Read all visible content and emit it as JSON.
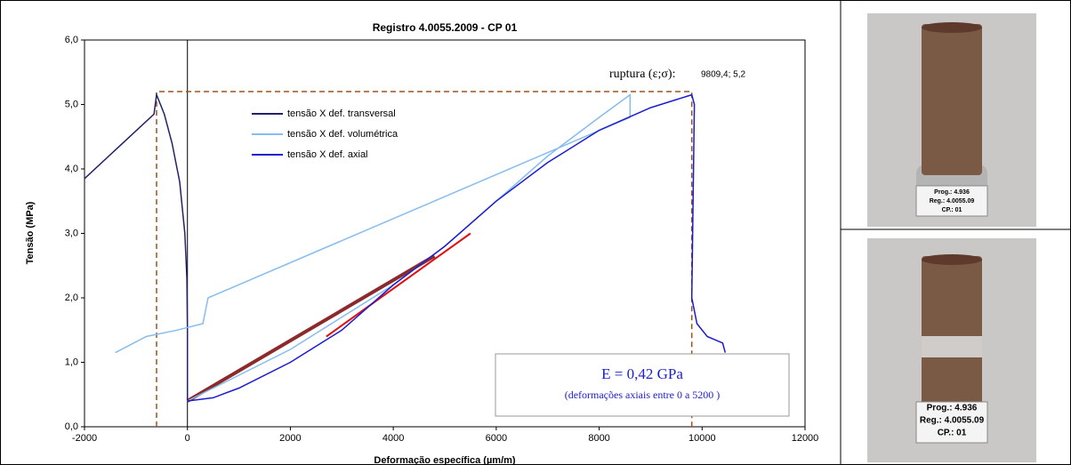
{
  "chart_data": {
    "type": "line",
    "title": "Registro 4.0055.2009 - CP 01",
    "x_label": "Deformação específica (µm/m)",
    "y_label": "Tensão (MPa)",
    "xlim": [
      -2000,
      12000
    ],
    "xticks": [
      -2000,
      0,
      2000,
      4000,
      6000,
      8000,
      10000,
      12000
    ],
    "ylim": [
      0,
      6
    ],
    "yticks": [
      {
        "value": 0,
        "label": "0,0"
      },
      {
        "value": 1,
        "label": "1,0"
      },
      {
        "value": 2,
        "label": "2,0"
      },
      {
        "value": 3,
        "label": "3,0"
      },
      {
        "value": 4,
        "label": "4,0"
      },
      {
        "value": 5,
        "label": "5,0"
      },
      {
        "value": 6,
        "label": "6,0"
      }
    ],
    "series": [
      {
        "name": "tensão X def. transversal",
        "color": "#22226a",
        "x": [
          0,
          0,
          -10,
          -50,
          -150,
          -300,
          -450,
          -600,
          -650,
          -2000
        ],
        "values": [
          0.4,
          1.5,
          2.3,
          3.0,
          3.8,
          4.4,
          4.85,
          5.15,
          4.85,
          3.85
        ]
      },
      {
        "name": "tensão X def. volumétrica",
        "color": "#86bcef",
        "x": [
          0,
          2000,
          4000,
          5000,
          6000,
          7000,
          8000,
          8600,
          8600,
          400,
          300,
          -200,
          -800,
          -1400
        ],
        "values": [
          0.4,
          1.2,
          2.2,
          2.8,
          3.5,
          4.2,
          4.8,
          5.15,
          4.8,
          2.0,
          1.6,
          1.5,
          1.4,
          1.15
        ]
      },
      {
        "name": "tensão X def. axial",
        "color": "#1c1ccf",
        "x": [
          0,
          500,
          1000,
          2000,
          3000,
          4000,
          5000,
          6000,
          7000,
          8000,
          9000,
          9800,
          9850,
          9800,
          9900,
          10100,
          10400,
          10450
        ],
        "values": [
          0.4,
          0.45,
          0.6,
          1.0,
          1.5,
          2.2,
          2.8,
          3.5,
          4.1,
          4.6,
          4.95,
          5.15,
          5.0,
          2.0,
          1.6,
          1.4,
          1.3,
          1.15
        ]
      }
    ],
    "reference_lines": [
      {
        "color": "#8b2a2a",
        "width": 4,
        "x": [
          0,
          4800
        ],
        "values": [
          0.4,
          2.65
        ]
      },
      {
        "color": "#e01010",
        "width": 2,
        "x": [
          2700,
          5500
        ],
        "values": [
          1.4,
          3.0
        ]
      },
      {
        "color": "#a0521a",
        "width": 1.5,
        "dashed": true,
        "x": [
          -600,
          -600,
          9800,
          9800
        ],
        "values": [
          0,
          5.2,
          5.2,
          0
        ]
      }
    ],
    "annotations": {
      "rupture_label": "ruptura (ε;σ):",
      "rupture_value": "9809,4; 5,2",
      "modulus": "E = 0,42 GPa",
      "modulus_note": "(deformações axiais entre 0 a 5200 )"
    },
    "grid": false
  },
  "photos": [
    {
      "label": [
        "Prog.: 4.936",
        "Reg.: 4.0055.09",
        "CP.: 01"
      ]
    },
    {
      "label": [
        "Prog.: 4.936",
        "Reg.: 4.0055.09",
        "CP.: 01"
      ]
    }
  ]
}
